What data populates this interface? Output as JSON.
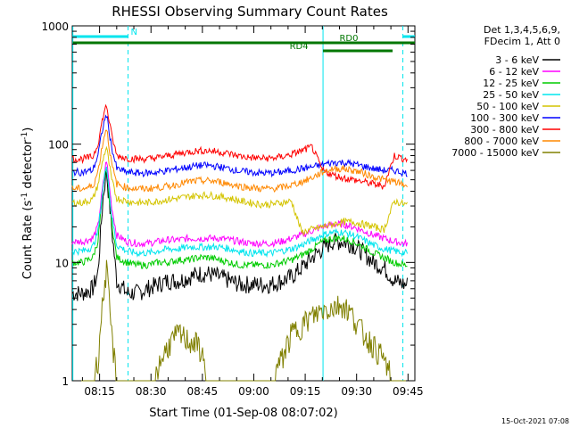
{
  "chart_data": {
    "type": "line",
    "title": "RHESSI Observing Summary Count Rates",
    "xlabel": "Start Time (01-Sep-08 08:07:02)",
    "ylabel_main": "Count Rate (s",
    "ylabel_sup1": "-1",
    "ylabel_mid": " detector",
    "ylabel_sup2": "-1",
    "ylabel_end": ")",
    "yscale": "log",
    "ylim": [
      1,
      1000
    ],
    "xlim": [
      "08:07:02",
      "09:47:00"
    ],
    "grid": false,
    "legend_placement": "right",
    "x_ticks": [
      "08:15",
      "08:30",
      "08:45",
      "09:00",
      "09:15",
      "09:30",
      "09:45"
    ],
    "x_tick_minutes": [
      495,
      510,
      525,
      540,
      555,
      570,
      585
    ],
    "y_ticks": [
      "1",
      "10",
      "100",
      "1000"
    ],
    "y_tick_values": [
      1,
      10,
      100,
      1000
    ],
    "legend_header": [
      "Det 1,3,4,5,6,9,",
      "FDecim 1, Att 0"
    ],
    "series": [
      {
        "name": "3 - 6 keV",
        "color": "#000000",
        "values": [
          5.5,
          5.5,
          6,
          8,
          35,
          60,
          20,
          7,
          5.5,
          5.5,
          6,
          6.5,
          7,
          7,
          7.5,
          8,
          8,
          7.5,
          7,
          6.5,
          6.5,
          6.5,
          6.5,
          7,
          7.5,
          9,
          11,
          13,
          15,
          15,
          14,
          12,
          10,
          9,
          7,
          6.5
        ]
      },
      {
        "name": "6 - 12 keV",
        "color": "#ff00ff",
        "values": [
          15,
          15,
          16,
          20,
          45,
          75,
          30,
          17,
          15,
          14.5,
          14.5,
          15,
          15.5,
          15.5,
          16,
          16,
          16,
          16,
          15.5,
          15,
          14.5,
          14.5,
          14.5,
          15,
          16,
          17,
          18.5,
          20,
          21,
          21,
          20,
          18.5,
          17,
          16,
          15,
          14.5
        ]
      },
      {
        "name": "12 - 25 keV",
        "color": "#00cc00",
        "values": [
          10,
          10,
          11,
          15,
          40,
          65,
          22,
          11,
          10,
          9.5,
          9.5,
          10,
          10,
          10.5,
          10.5,
          11,
          11,
          10.5,
          10,
          9.5,
          9.5,
          9.5,
          9.5,
          10,
          10.5,
          11.5,
          13,
          15,
          16,
          16,
          15,
          13.5,
          12,
          11,
          10,
          9.5
        ]
      },
      {
        "name": "25 - 50 keV",
        "color": "#00e5ee",
        "values": [
          12.5,
          12.5,
          13.5,
          18,
          42,
          70,
          25,
          14,
          12.5,
          12,
          12,
          12.5,
          13,
          13,
          13.5,
          13.5,
          13.5,
          13.5,
          13,
          12.5,
          12,
          12,
          12,
          12.5,
          13,
          14,
          15.5,
          17,
          18,
          18,
          17,
          15.5,
          14,
          13,
          12.5,
          12
        ]
      },
      {
        "name": "50 - 100 keV",
        "color": "#d4c400",
        "values": [
          32,
          32,
          34,
          45,
          75,
          95,
          50,
          35,
          33,
          32,
          32,
          33,
          34,
          35,
          36,
          37,
          37,
          36,
          35,
          33,
          32,
          31,
          31,
          32,
          33,
          18,
          19,
          20,
          21,
          22,
          22,
          21,
          20,
          19,
          33,
          31
        ]
      },
      {
        "name": "100 - 300 keV",
        "color": "#0000ff",
        "values": [
          58,
          58,
          60,
          80,
          140,
          180,
          95,
          62,
          58,
          57,
          57,
          58,
          60,
          62,
          64,
          66,
          66,
          64,
          62,
          59,
          58,
          57,
          57,
          58,
          60,
          62,
          64,
          67,
          70,
          70,
          68,
          65,
          62,
          60,
          60,
          57
        ]
      },
      {
        "name": "300 - 800 keV",
        "color": "#ff0000",
        "values": [
          75,
          75,
          78,
          100,
          170,
          215,
          120,
          80,
          76,
          75,
          75,
          77,
          80,
          83,
          86,
          88,
          88,
          86,
          83,
          79,
          77,
          76,
          76,
          78,
          82,
          88,
          95,
          60,
          55,
          52,
          50,
          48,
          46,
          44,
          80,
          75
        ]
      },
      {
        "name": "800 - 7000 keV",
        "color": "#ff8800",
        "values": [
          42,
          42,
          44,
          58,
          105,
          140,
          68,
          46,
          43,
          42,
          42,
          43,
          44,
          46,
          48,
          49,
          49,
          48,
          46,
          44,
          43,
          42,
          42,
          43,
          45,
          48,
          52,
          58,
          62,
          62,
          60,
          57,
          53,
          50,
          48,
          45
        ]
      },
      {
        "name": "7000 - 15000 keV",
        "color": "#808000",
        "values": [
          1,
          1,
          1,
          1.5,
          5,
          9,
          2.5,
          1,
          1,
          1,
          1,
          1.3,
          2,
          2.5,
          2.2,
          2,
          1,
          1,
          1,
          1,
          1,
          1,
          1,
          1.5,
          2.5,
          3,
          3.5,
          4,
          4.2,
          4.5,
          3.5,
          2.5,
          2,
          1.5,
          1,
          1
        ]
      }
    ],
    "x_minutes": [
      487.03,
      490,
      493,
      494.5,
      496,
      497,
      498.5,
      500,
      503,
      506,
      509,
      512,
      515,
      518,
      521,
      524,
      527,
      530,
      533,
      536,
      539,
      542,
      545,
      548,
      551,
      554,
      557,
      560,
      563,
      566,
      569,
      572,
      575,
      578,
      581,
      584
    ],
    "vlines": [
      {
        "minute": 487.2,
        "color": "#00e5ee",
        "style": "solid"
      },
      {
        "minute": 503.3,
        "color": "#00e5ee",
        "style": "dashed"
      },
      {
        "minute": 560.2,
        "color": "#00e5ee",
        "style": "solid"
      },
      {
        "minute": 583.5,
        "color": "#00e5ee",
        "style": "dashed"
      }
    ],
    "flag_bars": [
      {
        "label": "N",
        "color": "#00e5ee",
        "segments": [
          [
            487.2,
            503.3
          ],
          [
            583.5,
            587
          ]
        ],
        "level": 0
      },
      {
        "label": "RD0",
        "color": "#007700",
        "segments": [
          [
            487.2,
            587
          ]
        ],
        "level": 1
      },
      {
        "label": "RD4",
        "color": "#007700",
        "segments": [
          [
            560.2,
            580.5
          ]
        ],
        "level": 2
      }
    ],
    "timestamp": "15-Oct-2021 07:08"
  }
}
